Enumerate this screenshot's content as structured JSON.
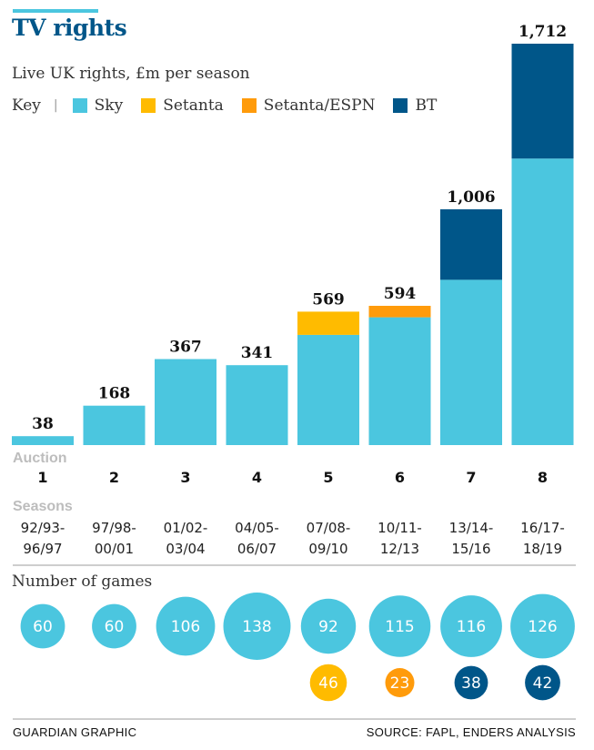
{
  "title": "TV rights",
  "subtitle": "Live UK rights, £m per season",
  "key": {
    "label": "Key",
    "separator": "|",
    "items": [
      {
        "name": "Sky",
        "color": "#4bc6df"
      },
      {
        "name": "Setanta",
        "color": "#ffbb00"
      },
      {
        "name": "Setanta/ESPN",
        "color": "#ff9b0b"
      },
      {
        "name": "BT",
        "color": "#005689"
      }
    ]
  },
  "chart_data": {
    "type": "bar",
    "stacked": true,
    "title": "TV rights",
    "subtitle": "Live UK rights, £m per season",
    "unit": "£m per season",
    "ylim": [
      0,
      1712
    ],
    "categories": [
      "1",
      "2",
      "3",
      "4",
      "5",
      "6",
      "7",
      "8"
    ],
    "category_header": "Auction",
    "season_header": "Seasons",
    "seasons": [
      [
        "92/93-",
        "96/97"
      ],
      [
        "97/98-",
        "00/01"
      ],
      [
        "01/02-",
        "03/04"
      ],
      [
        "04/05-",
        "06/07"
      ],
      [
        "07/08-",
        "09/10"
      ],
      [
        "10/11-",
        "12/13"
      ],
      [
        "13/14-",
        "15/16"
      ],
      [
        "16/17-",
        "18/19"
      ]
    ],
    "totals": [
      "38",
      "168",
      "367",
      "341",
      "569",
      "594",
      "1,006",
      "1,712"
    ],
    "series": [
      {
        "name": "Sky",
        "color": "#4bc6df",
        "values": [
          38,
          168,
          367,
          341,
          470,
          545,
          705,
          1222
        ]
      },
      {
        "name": "Setanta",
        "color": "#ffbb00",
        "values": [
          0,
          0,
          0,
          0,
          99,
          0,
          0,
          0
        ]
      },
      {
        "name": "Setanta/ESPN",
        "color": "#ff9b0b",
        "values": [
          0,
          0,
          0,
          0,
          0,
          49,
          0,
          0
        ]
      },
      {
        "name": "BT",
        "color": "#005689",
        "values": [
          0,
          0,
          0,
          0,
          0,
          0,
          301,
          490
        ]
      }
    ],
    "games": {
      "title": "Number of games",
      "primary": [
        {
          "value": 60,
          "color": "#4bc6df"
        },
        {
          "value": 60,
          "color": "#4bc6df"
        },
        {
          "value": 106,
          "color": "#4bc6df"
        },
        {
          "value": 138,
          "color": "#4bc6df"
        },
        {
          "value": 92,
          "color": "#4bc6df"
        },
        {
          "value": 115,
          "color": "#4bc6df"
        },
        {
          "value": 116,
          "color": "#4bc6df"
        },
        {
          "value": 126,
          "color": "#4bc6df"
        }
      ],
      "secondary": [
        null,
        null,
        null,
        null,
        {
          "value": 46,
          "color": "#ffbb00"
        },
        {
          "value": 23,
          "color": "#ff9b0b"
        },
        {
          "value": 38,
          "color": "#005689"
        },
        {
          "value": 42,
          "color": "#005689"
        }
      ]
    }
  },
  "footer": {
    "left": "GUARDIAN GRAPHIC",
    "right": "SOURCE: FAPL, ENDERS ANALYSIS"
  }
}
